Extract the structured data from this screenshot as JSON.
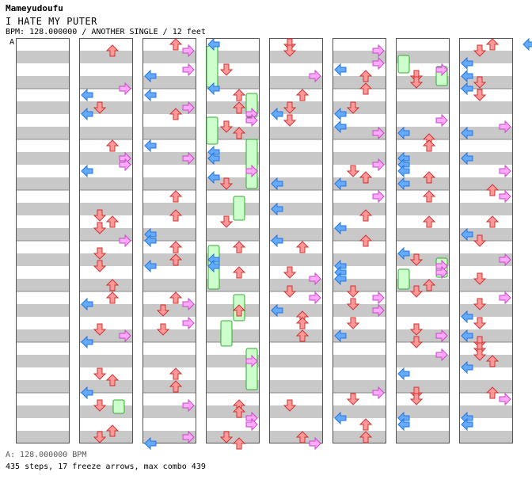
{
  "header": {
    "author": "Mameyudoufu",
    "song_title": "I HATE MY PUTER",
    "info": "BPM: 128.000000 / ANOTHER SINGLE / 12 feet",
    "bpm_marker": "A"
  },
  "footer": {
    "bpm_line": "A: 128.000000 BPM",
    "stats_line": "435 steps, 17 freeze arrows, max combo 439"
  },
  "colors": {
    "stripe": "#c8c8c8",
    "left_arrow": "#66aaff",
    "down_arrow": "#ff9999",
    "up_arrow": "#ff9999",
    "right_arrow": "#ffaaff",
    "freeze": "#ccffcc"
  },
  "icons": [
    "left-arrow-icon",
    "down-arrow-icon",
    "up-arrow-icon",
    "right-arrow-icon",
    "freeze-arrow-icon"
  ]
}
